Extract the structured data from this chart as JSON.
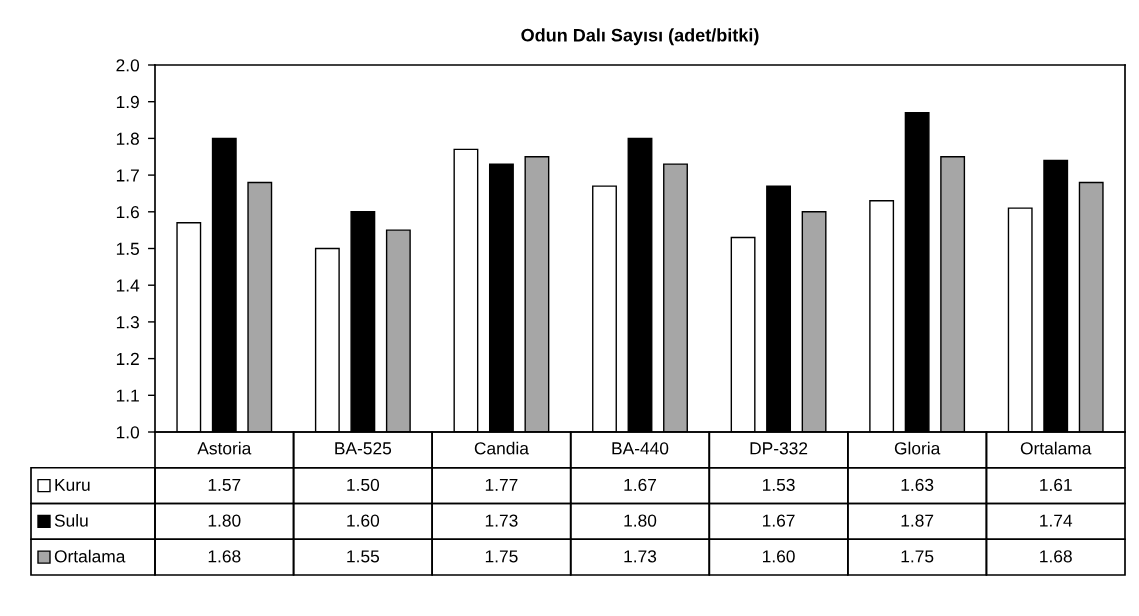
{
  "chart_data": {
    "type": "bar",
    "title": "Odun Dalı Sayısı (adet/bitki)",
    "categories": [
      "Astoria",
      "BA-525",
      "Candia",
      "BA-440",
      "DP-332",
      "Gloria",
      "Ortalama"
    ],
    "series": [
      {
        "name": "Kuru",
        "color": "#ffffff",
        "values": [
          1.57,
          1.5,
          1.77,
          1.67,
          1.53,
          1.63,
          1.61
        ],
        "value_labels": [
          "1.57",
          "1.50",
          "1.77",
          "1.67",
          "1.53",
          "1.63",
          "1.61"
        ]
      },
      {
        "name": "Sulu",
        "color": "#000000",
        "values": [
          1.8,
          1.6,
          1.73,
          1.8,
          1.67,
          1.87,
          1.74
        ],
        "value_labels": [
          "1.80",
          "1.60",
          "1.73",
          "1.80",
          "1.67",
          "1.87",
          "1.74"
        ]
      },
      {
        "name": "Ortalama",
        "color": "#a6a6a6",
        "values": [
          1.68,
          1.55,
          1.75,
          1.73,
          1.6,
          1.75,
          1.68
        ],
        "value_labels": [
          "1.68",
          "1.55",
          "1.75",
          "1.73",
          "1.60",
          "1.75",
          "1.68"
        ]
      }
    ],
    "ylim": [
      1.0,
      2.0
    ],
    "yticks": [
      {
        "value": 1.0,
        "label": "1.0"
      },
      1.1,
      1.2,
      1.3,
      1.4,
      1.5,
      1.6,
      1.7,
      1.8,
      1.9,
      {
        "value": 2.0,
        "label": "2.0"
      }
    ],
    "grid": false,
    "legend": "bottom"
  }
}
